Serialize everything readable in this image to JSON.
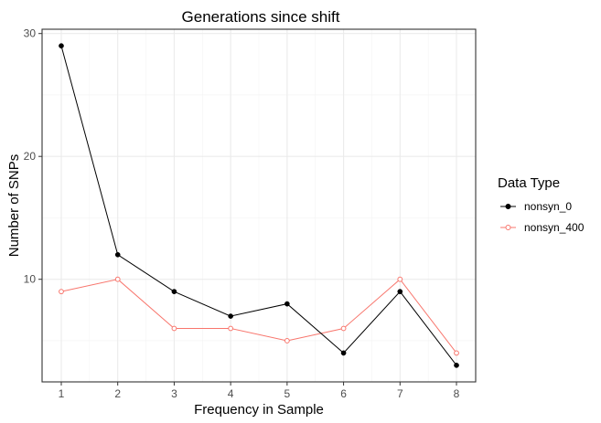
{
  "chart_data": {
    "type": "line",
    "title": "Generations since shift",
    "xlabel": "Frequency in Sample",
    "ylabel": "Number of SNPs",
    "x": [
      1,
      2,
      3,
      4,
      5,
      6,
      7,
      8
    ],
    "x_ticks": [
      "1",
      "2",
      "3",
      "4",
      "5",
      "6",
      "7",
      "8"
    ],
    "y_ticks": [
      "10",
      "20",
      "30"
    ],
    "xlim": [
      0.66,
      8.34
    ],
    "ylim": [
      1.65,
      30.35
    ],
    "grid": true,
    "legend_position": "right",
    "legend_title": "Data Type",
    "series": [
      {
        "name": "nonsyn_0",
        "values": [
          29,
          12,
          9,
          7,
          8,
          4,
          9,
          3
        ],
        "color": "#000000",
        "marker": "filled-circle"
      },
      {
        "name": "nonsyn_400",
        "values": [
          9,
          10,
          6,
          6,
          5,
          6,
          10,
          4
        ],
        "color": "#f8766d",
        "marker": "open-circle"
      }
    ]
  }
}
